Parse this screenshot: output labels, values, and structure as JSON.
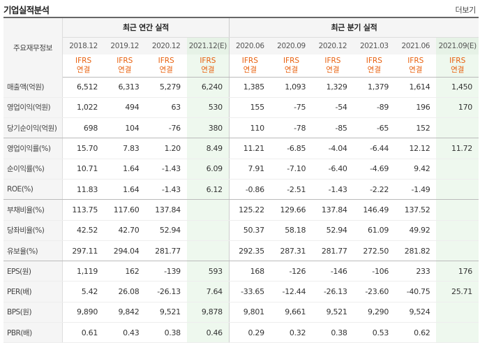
{
  "header": {
    "title": "기업실적분석",
    "more": "더보기"
  },
  "table": {
    "row_label_header": "주요재무정보",
    "annual_header": "최근 연간 실적",
    "quarter_header": "최근 분기 실적",
    "periods": [
      "2018.12",
      "2019.12",
      "2020.12",
      "2021.12(E)",
      "2020.06",
      "2020.09",
      "2020.12",
      "2021.03",
      "2021.06",
      "2021.09(E)"
    ],
    "basis_top": "IFRS",
    "basis_bottom": "연결",
    "rows": [
      {
        "label": "매출액(억원)",
        "values": [
          "6,512",
          "6,313",
          "5,279",
          "6,240",
          "1,385",
          "1,093",
          "1,329",
          "1,379",
          "1,614",
          "1,450"
        ]
      },
      {
        "label": "영업이익(억원)",
        "values": [
          "1,022",
          "494",
          "63",
          "530",
          "155",
          "-75",
          "-54",
          "-89",
          "196",
          "170"
        ]
      },
      {
        "label": "당기순이익(억원)",
        "values": [
          "698",
          "104",
          "-76",
          "380",
          "110",
          "-78",
          "-85",
          "-65",
          "152",
          ""
        ]
      },
      {
        "label": "영업이익률(%)",
        "values": [
          "15.70",
          "7.83",
          "1.20",
          "8.49",
          "11.21",
          "-6.85",
          "-4.04",
          "-6.44",
          "12.12",
          "11.72"
        ]
      },
      {
        "label": "순이익률(%)",
        "values": [
          "10.71",
          "1.64",
          "-1.43",
          "6.09",
          "7.91",
          "-7.10",
          "-6.40",
          "-4.69",
          "9.42",
          ""
        ]
      },
      {
        "label": "ROE(%)",
        "values": [
          "11.83",
          "1.64",
          "-1.43",
          "6.12",
          "-0.86",
          "-2.51",
          "-1.43",
          "-2.22",
          "-1.49",
          ""
        ]
      },
      {
        "label": "부채비율(%)",
        "values": [
          "113.75",
          "117.60",
          "137.84",
          "",
          "125.22",
          "129.66",
          "137.84",
          "146.49",
          "137.52",
          ""
        ]
      },
      {
        "label": "당좌비율(%)",
        "values": [
          "42.52",
          "42.70",
          "52.94",
          "",
          "50.37",
          "58.18",
          "52.94",
          "61.09",
          "49.92",
          ""
        ]
      },
      {
        "label": "유보율(%)",
        "values": [
          "297.11",
          "294.04",
          "281.77",
          "",
          "292.35",
          "287.31",
          "281.77",
          "272.50",
          "281.82",
          ""
        ]
      },
      {
        "label": "EPS(원)",
        "values": [
          "1,119",
          "162",
          "-139",
          "593",
          "168",
          "-126",
          "-146",
          "-106",
          "233",
          "176"
        ]
      },
      {
        "label": "PER(배)",
        "values": [
          "5.42",
          "26.08",
          "-26.13",
          "7.64",
          "-33.65",
          "-12.44",
          "-26.13",
          "-23.60",
          "-40.75",
          "25.71"
        ]
      },
      {
        "label": "BPS(원)",
        "values": [
          "9,890",
          "9,842",
          "9,521",
          "9,878",
          "9,801",
          "9,661",
          "9,521",
          "9,290",
          "9,524",
          ""
        ]
      },
      {
        "label": "PBR(배)",
        "values": [
          "0.61",
          "0.43",
          "0.38",
          "0.46",
          "0.29",
          "0.32",
          "0.38",
          "0.53",
          "0.62",
          ""
        ]
      }
    ]
  },
  "colors": {
    "negative": "#e02020",
    "ifrs": "#e8600e",
    "estimate_bg": "#eef8ee"
  }
}
